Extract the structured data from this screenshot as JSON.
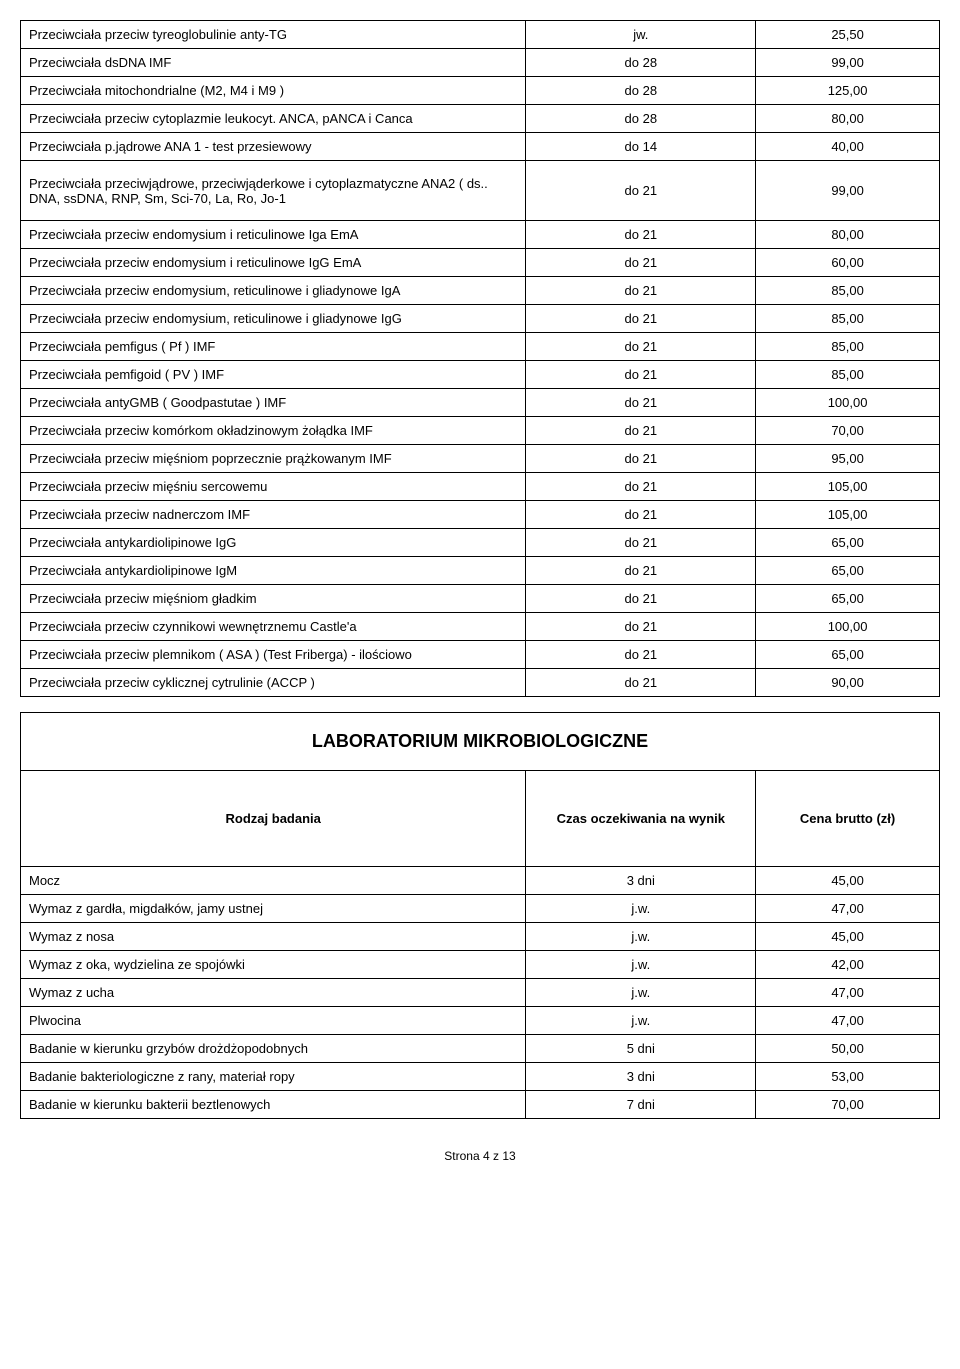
{
  "table1": {
    "rows": [
      {
        "name": "Przeciwciała przeciw tyreoglobulinie anty-TG",
        "time": "jw.",
        "price": "25,50"
      },
      {
        "name": "Przeciwciała dsDNA IMF",
        "time": "do 28",
        "price": "99,00"
      },
      {
        "name": "Przeciwciała mitochondrialne (M2, M4 i M9 )",
        "time": "do 28",
        "price": "125,00"
      },
      {
        "name": "Przeciwciała przeciw cytoplazmie leukocyt. ANCA, pANCA i Canca",
        "time": "do 28",
        "price": "80,00"
      },
      {
        "name": "Przeciwciała p.jądrowe ANA 1 - test przesiewowy",
        "time": "do 14",
        "price": "40,00"
      },
      {
        "name": "Przeciwciała przeciwjądrowe, przeciwjąderkowe i cytoplazmatyczne ANA2 ( ds.. DNA, ssDNA, RNP, Sm, Sci-70, La, Ro, Jo-1",
        "time": "do 21",
        "price": "99,00"
      },
      {
        "name": "Przeciwciała przeciw endomysium i reticulinowe Iga EmA",
        "time": "do 21",
        "price": "80,00"
      },
      {
        "name": "Przeciwciała przeciw endomysium i reticulinowe IgG EmA",
        "time": "do 21",
        "price": "60,00"
      },
      {
        "name": "Przeciwciała przeciw endomysium, reticulinowe i gliadynowe IgA",
        "time": "do 21",
        "price": "85,00"
      },
      {
        "name": "Przeciwciała przeciw endomysium, reticulinowe i gliadynowe IgG",
        "time": "do 21",
        "price": "85,00"
      },
      {
        "name": "Przeciwciała pemfigus ( Pf ) IMF",
        "time": "do 21",
        "price": "85,00"
      },
      {
        "name": "Przeciwciała pemfigoid ( PV ) IMF",
        "time": "do 21",
        "price": "85,00"
      },
      {
        "name": "Przeciwciała antyGMB ( Goodpastutae ) IMF",
        "time": "do 21",
        "price": "100,00"
      },
      {
        "name": "Przeciwciała przeciw komórkom okładzinowym żołądka IMF",
        "time": "do 21",
        "price": "70,00"
      },
      {
        "name": "Przeciwciała przeciw mięśniom poprzecznie prążkowanym IMF",
        "time": "do 21",
        "price": "95,00"
      },
      {
        "name": "Przeciwciała przeciw mięśniu sercowemu",
        "time": "do 21",
        "price": "105,00"
      },
      {
        "name": "Przeciwciała przeciw nadnerczom IMF",
        "time": "do 21",
        "price": "105,00"
      },
      {
        "name": "Przeciwciała antykardiolipinowe IgG",
        "time": "do 21",
        "price": "65,00"
      },
      {
        "name": "Przeciwciała antykardiolipinowe IgM",
        "time": "do 21",
        "price": "65,00"
      },
      {
        "name": "Przeciwciała przeciw mięśniom gładkim",
        "time": "do 21",
        "price": "65,00"
      },
      {
        "name": "Przeciwciała przeciw czynnikowi wewnętrznemu Castle'a",
        "time": "do 21",
        "price": "100,00"
      },
      {
        "name": "Przeciwciała przeciw plemnikom ( ASA ) (Test Friberga) - ilościowo",
        "time": "do 21",
        "price": "65,00"
      },
      {
        "name": "Przeciwciała przeciw cyklicznej cytrulinie (ACCP )",
        "time": "do 21",
        "price": "90,00"
      }
    ]
  },
  "section2": {
    "title": "LABORATORIUM  MIKROBIOLOGICZNE",
    "headers": {
      "name": "Rodzaj badania",
      "time": "Czas oczekiwania na wynik",
      "price": "Cena brutto (zł)"
    },
    "rows": [
      {
        "name": "Mocz",
        "time": "3 dni",
        "price": "45,00"
      },
      {
        "name": "Wymaz z gardła, migdałków, jamy ustnej",
        "time": "j.w.",
        "price": "47,00"
      },
      {
        "name": "Wymaz z nosa",
        "time": "j.w.",
        "price": "45,00"
      },
      {
        "name": "Wymaz z oka, wydzielina ze spojówki",
        "time": "j.w.",
        "price": "42,00"
      },
      {
        "name": "Wymaz z ucha",
        "time": "j.w.",
        "price": "47,00"
      },
      {
        "name": "Plwocina",
        "time": "j.w.",
        "price": "47,00"
      },
      {
        "name": "Badanie w kierunku grzybów drożdżopodobnych",
        "time": "5 dni",
        "price": "50,00"
      },
      {
        "name": "Badanie bakteriologiczne z rany, materiał ropy",
        "time": "3 dni",
        "price": "53,00"
      },
      {
        "name": "Badanie w kierunku bakterii beztlenowych",
        "time": "7 dni",
        "price": "70,00"
      }
    ]
  },
  "footer": "Strona 4 z 13"
}
